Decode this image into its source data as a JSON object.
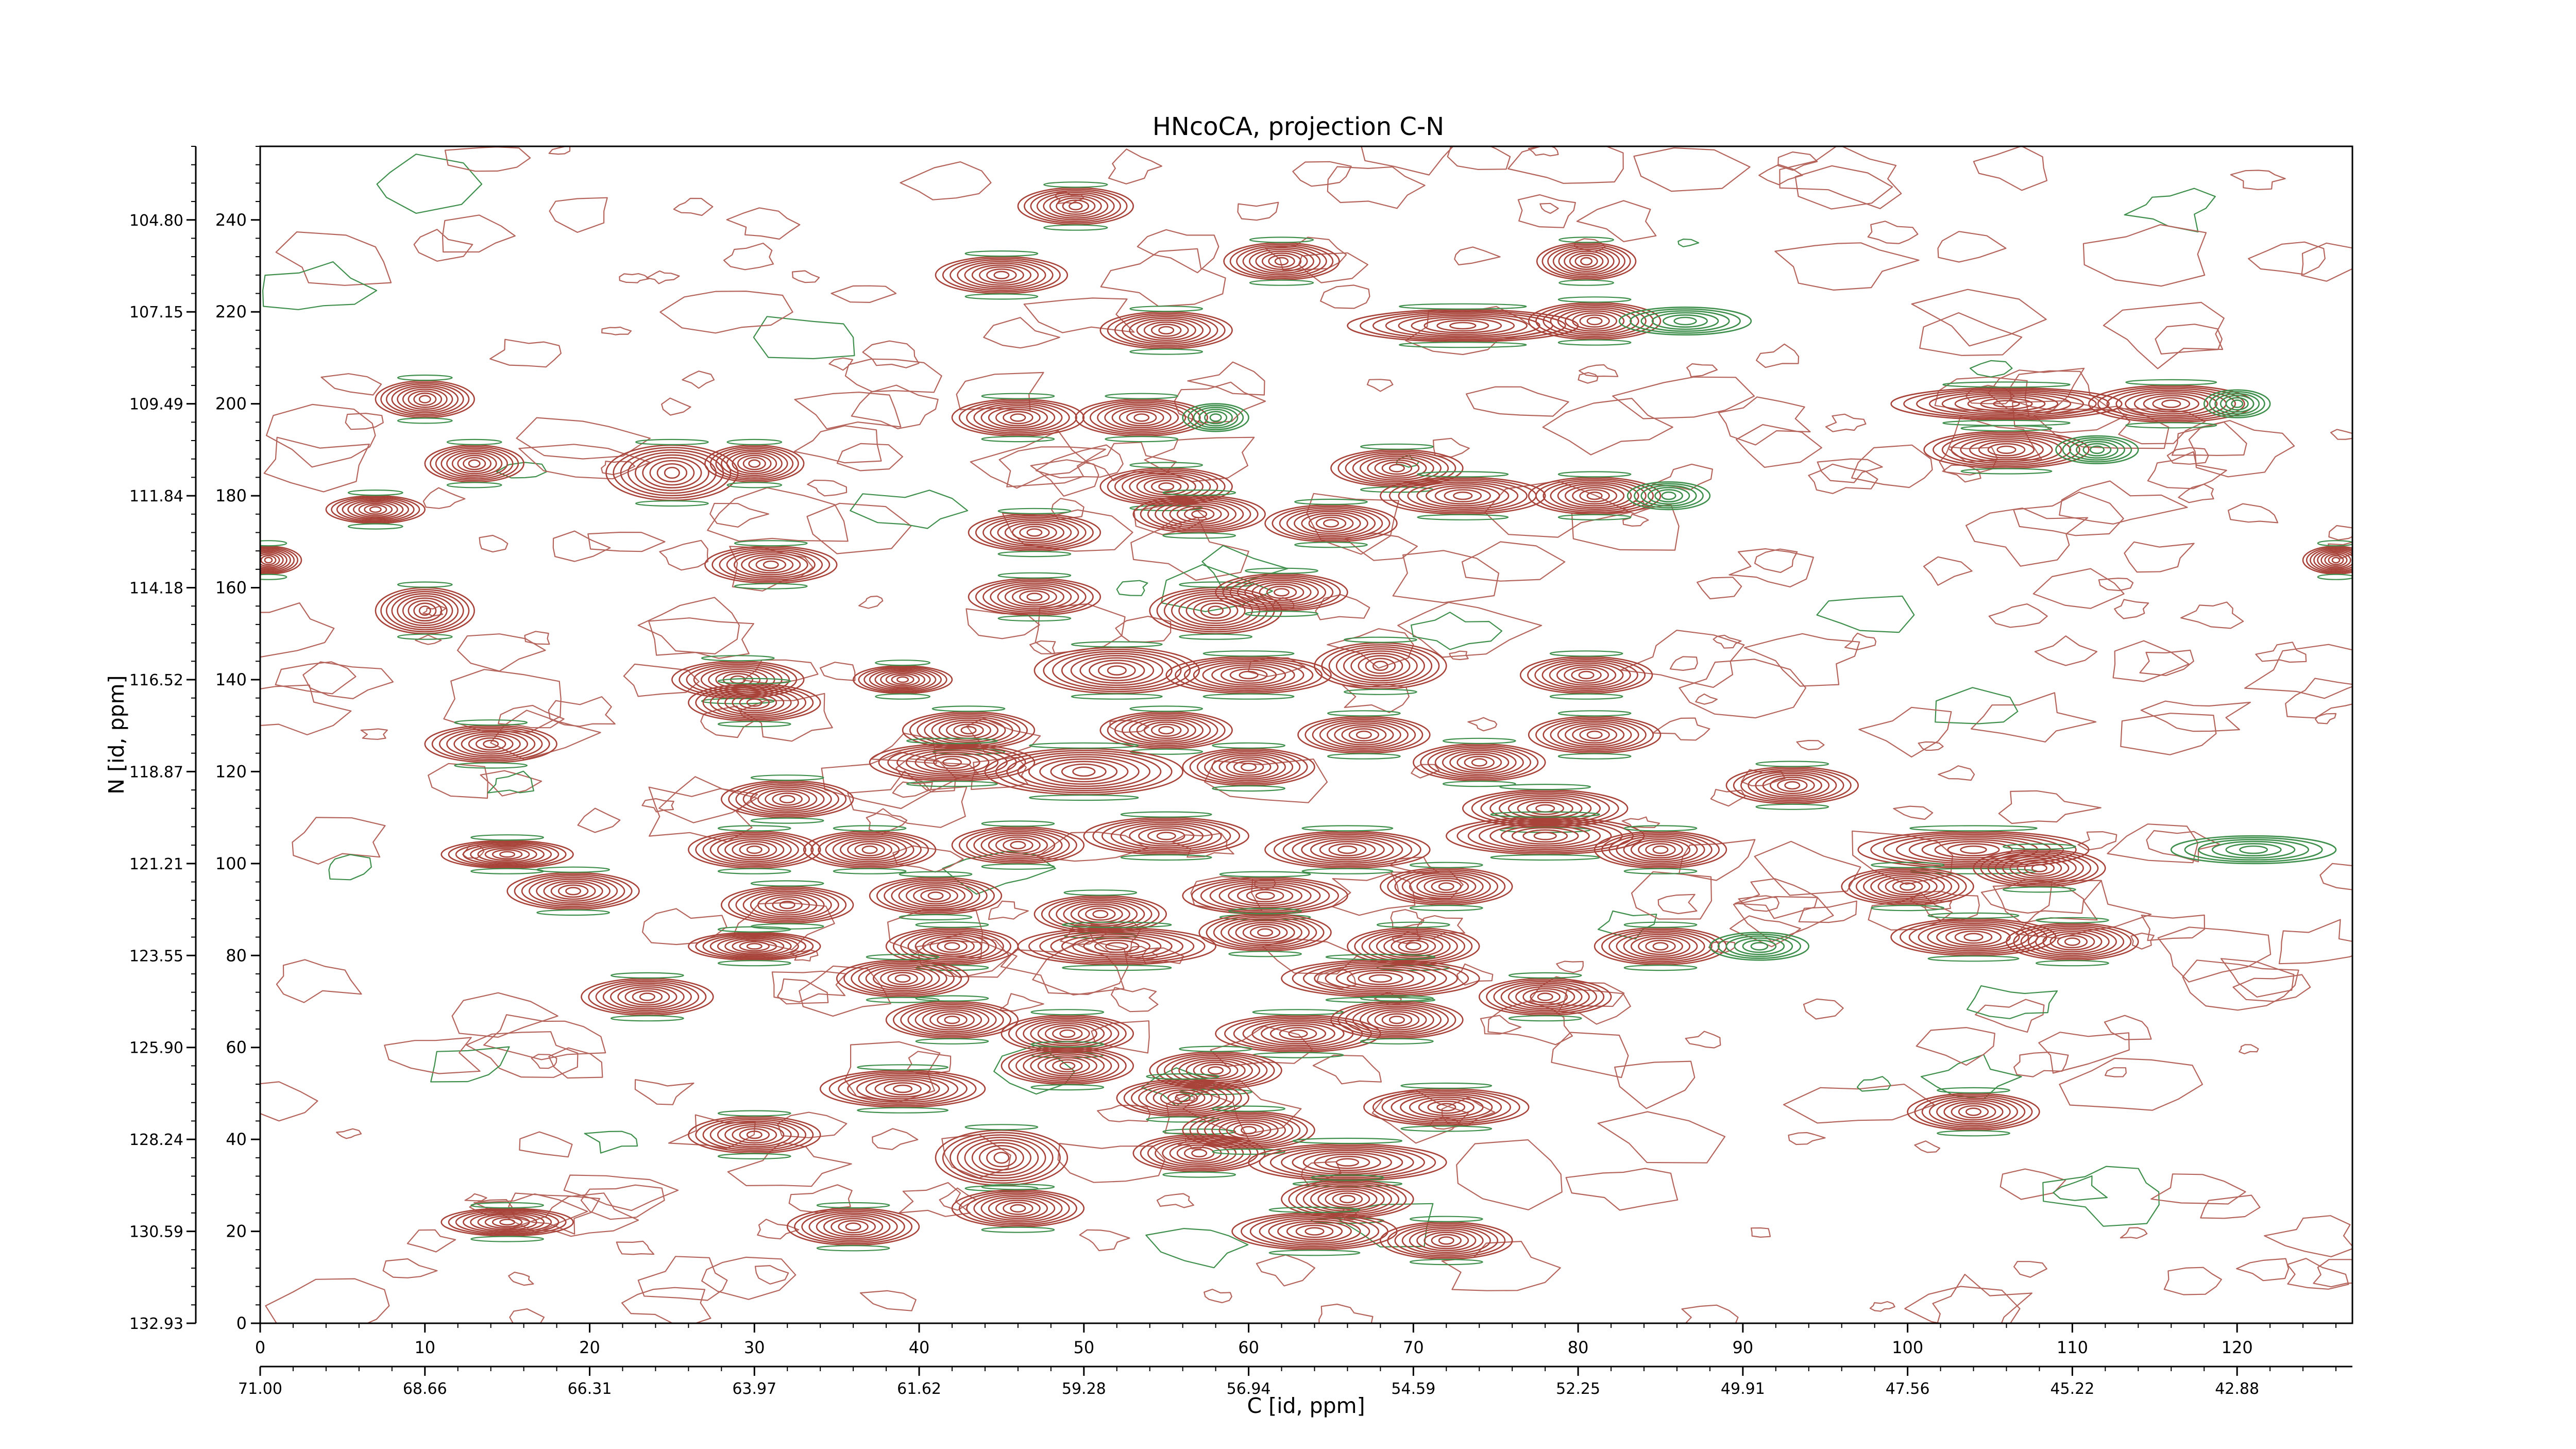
{
  "chart_data": {
    "type": "contour",
    "title": "HNcoCA, projection C-N",
    "xlabel": "C [id, ppm]",
    "ylabel": "N [id, ppm]",
    "xlim": [
      0,
      127
    ],
    "ylim": [
      0,
      256
    ],
    "x_ticks": [
      0,
      10,
      20,
      30,
      40,
      50,
      60,
      70,
      80,
      90,
      100,
      110,
      120
    ],
    "y_ticks": [
      0,
      20,
      40,
      60,
      80,
      100,
      120,
      140,
      160,
      180,
      200,
      220,
      240
    ],
    "x_ppm_labels": [
      "71.00",
      "68.66",
      "66.31",
      "63.97",
      "61.62",
      "59.28",
      "56.94",
      "54.59",
      "52.25",
      "49.91",
      "47.56",
      "45.22",
      "42.88"
    ],
    "y_ppm_labels": [
      "132.93",
      "130.59",
      "128.24",
      "125.90",
      "123.55",
      "121.21",
      "118.87",
      "116.52",
      "114.18",
      "111.84",
      "109.49",
      "107.15",
      "104.80"
    ],
    "colors": {
      "positive": "#a8433a",
      "negative": "#3f8f4c",
      "noise": "#b5645c"
    },
    "peaks": [
      {
        "x": 49.5,
        "y": 243,
        "w": 3.5,
        "h": 4,
        "sign": 1
      },
      {
        "x": 62,
        "y": 231,
        "w": 3.5,
        "h": 4,
        "sign": 1
      },
      {
        "x": 45,
        "y": 228,
        "w": 4,
        "h": 4,
        "sign": 1
      },
      {
        "x": 80.5,
        "y": 231,
        "w": 3,
        "h": 4,
        "sign": 1
      },
      {
        "x": 55,
        "y": 216,
        "w": 4,
        "h": 4,
        "sign": 1
      },
      {
        "x": 73,
        "y": 217,
        "w": 7,
        "h": 3.5,
        "sign": 1
      },
      {
        "x": 81,
        "y": 218,
        "w": 4,
        "h": 4,
        "sign": 1
      },
      {
        "x": 86.5,
        "y": 218,
        "w": 4,
        "h": 3,
        "sign": -1
      },
      {
        "x": 10,
        "y": 201,
        "w": 3,
        "h": 4,
        "sign": 1
      },
      {
        "x": 46,
        "y": 197,
        "w": 4,
        "h": 4,
        "sign": 1
      },
      {
        "x": 53.5,
        "y": 197,
        "w": 4,
        "h": 4,
        "sign": 1
      },
      {
        "x": 58,
        "y": 197,
        "w": 2,
        "h": 3,
        "sign": -1
      },
      {
        "x": 106,
        "y": 200,
        "w": 7,
        "h": 3.5,
        "sign": 1
      },
      {
        "x": 116,
        "y": 200,
        "w": 5,
        "h": 4,
        "sign": 1
      },
      {
        "x": 120,
        "y": 200,
        "w": 2,
        "h": 3,
        "sign": -1
      },
      {
        "x": 13,
        "y": 187,
        "w": 3,
        "h": 4,
        "sign": 1
      },
      {
        "x": 25,
        "y": 185,
        "w": 4,
        "h": 6,
        "sign": 1
      },
      {
        "x": 30,
        "y": 187,
        "w": 3,
        "h": 4,
        "sign": 1
      },
      {
        "x": 7,
        "y": 177,
        "w": 3,
        "h": 3,
        "sign": 1
      },
      {
        "x": 55,
        "y": 182,
        "w": 4,
        "h": 4,
        "sign": 1
      },
      {
        "x": 69,
        "y": 186,
        "w": 4,
        "h": 4,
        "sign": 1
      },
      {
        "x": 73,
        "y": 180,
        "w": 5,
        "h": 4,
        "sign": 1
      },
      {
        "x": 81,
        "y": 180,
        "w": 4,
        "h": 4,
        "sign": 1
      },
      {
        "x": 85.5,
        "y": 180,
        "w": 2.5,
        "h": 3,
        "sign": -1
      },
      {
        "x": 106,
        "y": 190,
        "w": 5,
        "h": 4,
        "sign": 1
      },
      {
        "x": 111.5,
        "y": 190,
        "w": 2.5,
        "h": 3,
        "sign": -1
      },
      {
        "x": 47,
        "y": 172,
        "w": 4,
        "h": 4,
        "sign": 1
      },
      {
        "x": 57,
        "y": 176,
        "w": 4,
        "h": 4,
        "sign": 1
      },
      {
        "x": 65,
        "y": 174,
        "w": 4,
        "h": 4,
        "sign": 1
      },
      {
        "x": 31,
        "y": 165,
        "w": 4,
        "h": 4,
        "sign": 1
      },
      {
        "x": 0.5,
        "y": 166,
        "w": 2,
        "h": 3,
        "sign": 1
      },
      {
        "x": 126,
        "y": 166,
        "w": 2,
        "h": 3,
        "sign": 1
      },
      {
        "x": 10,
        "y": 155,
        "w": 3,
        "h": 5,
        "sign": 1
      },
      {
        "x": 47,
        "y": 158,
        "w": 4,
        "h": 4,
        "sign": 1
      },
      {
        "x": 58,
        "y": 155,
        "w": 4,
        "h": 5,
        "sign": 1
      },
      {
        "x": 62,
        "y": 159,
        "w": 4,
        "h": 4,
        "sign": 1
      },
      {
        "x": 29,
        "y": 140,
        "w": 4,
        "h": 4,
        "sign": 1
      },
      {
        "x": 30,
        "y": 135,
        "w": 4,
        "h": 4,
        "sign": 1
      },
      {
        "x": 39,
        "y": 140,
        "w": 3,
        "h": 3,
        "sign": 1
      },
      {
        "x": 52,
        "y": 142,
        "w": 5,
        "h": 5,
        "sign": 1
      },
      {
        "x": 60,
        "y": 141,
        "w": 5,
        "h": 4,
        "sign": 1
      },
      {
        "x": 68,
        "y": 143,
        "w": 4,
        "h": 5,
        "sign": 1
      },
      {
        "x": 80.5,
        "y": 141,
        "w": 4,
        "h": 4,
        "sign": 1
      },
      {
        "x": 14,
        "y": 126,
        "w": 4,
        "h": 4,
        "sign": 1
      },
      {
        "x": 43,
        "y": 129,
        "w": 4,
        "h": 4,
        "sign": 1
      },
      {
        "x": 55,
        "y": 129,
        "w": 4,
        "h": 4,
        "sign": 1
      },
      {
        "x": 67,
        "y": 128,
        "w": 4,
        "h": 4,
        "sign": 1
      },
      {
        "x": 81,
        "y": 128,
        "w": 4,
        "h": 4,
        "sign": 1
      },
      {
        "x": 42,
        "y": 122,
        "w": 5,
        "h": 4,
        "sign": 1
      },
      {
        "x": 50,
        "y": 120,
        "w": 6,
        "h": 5,
        "sign": 1
      },
      {
        "x": 60,
        "y": 121,
        "w": 4,
        "h": 4,
        "sign": 1
      },
      {
        "x": 74,
        "y": 122,
        "w": 4,
        "h": 4,
        "sign": 1
      },
      {
        "x": 32,
        "y": 114,
        "w": 4,
        "h": 4,
        "sign": 1
      },
      {
        "x": 93,
        "y": 117,
        "w": 4,
        "h": 4,
        "sign": 1
      },
      {
        "x": 78,
        "y": 112,
        "w": 5,
        "h": 4,
        "sign": 1
      },
      {
        "x": 15,
        "y": 102,
        "w": 4,
        "h": 3,
        "sign": 1
      },
      {
        "x": 30,
        "y": 103,
        "w": 4,
        "h": 4,
        "sign": 1
      },
      {
        "x": 37,
        "y": 103,
        "w": 4,
        "h": 4,
        "sign": 1
      },
      {
        "x": 46,
        "y": 104,
        "w": 4,
        "h": 4,
        "sign": 1
      },
      {
        "x": 55,
        "y": 106,
        "w": 5,
        "h": 4,
        "sign": 1
      },
      {
        "x": 66,
        "y": 103,
        "w": 5,
        "h": 4,
        "sign": 1
      },
      {
        "x": 78,
        "y": 106,
        "w": 6,
        "h": 4,
        "sign": 1
      },
      {
        "x": 85,
        "y": 103,
        "w": 4,
        "h": 4,
        "sign": 1
      },
      {
        "x": 104,
        "y": 103,
        "w": 7,
        "h": 4,
        "sign": 1
      },
      {
        "x": 108,
        "y": 99,
        "w": 4,
        "h": 4,
        "sign": 1
      },
      {
        "x": 121,
        "y": 103,
        "w": 5,
        "h": 3,
        "sign": -1
      },
      {
        "x": 19,
        "y": 94,
        "w": 4,
        "h": 4,
        "sign": 1
      },
      {
        "x": 32,
        "y": 91,
        "w": 4,
        "h": 4,
        "sign": 1
      },
      {
        "x": 41,
        "y": 93,
        "w": 4,
        "h": 4,
        "sign": 1
      },
      {
        "x": 51,
        "y": 89,
        "w": 4,
        "h": 4,
        "sign": 1
      },
      {
        "x": 61,
        "y": 93,
        "w": 5,
        "h": 4,
        "sign": 1
      },
      {
        "x": 72,
        "y": 95,
        "w": 4,
        "h": 4,
        "sign": 1
      },
      {
        "x": 100,
        "y": 95,
        "w": 4,
        "h": 4,
        "sign": 1
      },
      {
        "x": 30,
        "y": 82,
        "w": 4,
        "h": 3,
        "sign": 1
      },
      {
        "x": 42,
        "y": 82,
        "w": 4,
        "h": 4,
        "sign": 1
      },
      {
        "x": 52,
        "y": 82,
        "w": 6,
        "h": 4,
        "sign": 1
      },
      {
        "x": 61,
        "y": 85,
        "w": 4,
        "h": 4,
        "sign": 1
      },
      {
        "x": 70,
        "y": 82,
        "w": 4,
        "h": 4,
        "sign": 1
      },
      {
        "x": 85,
        "y": 82,
        "w": 4,
        "h": 4,
        "sign": 1
      },
      {
        "x": 91,
        "y": 82,
        "w": 3,
        "h": 3,
        "sign": -1
      },
      {
        "x": 104,
        "y": 84,
        "w": 5,
        "h": 4,
        "sign": 1
      },
      {
        "x": 110,
        "y": 83,
        "w": 4,
        "h": 4,
        "sign": 1
      },
      {
        "x": 23.5,
        "y": 71,
        "w": 4,
        "h": 4,
        "sign": 1
      },
      {
        "x": 39,
        "y": 75,
        "w": 4,
        "h": 4,
        "sign": 1
      },
      {
        "x": 68,
        "y": 75,
        "w": 6,
        "h": 4,
        "sign": 1
      },
      {
        "x": 78,
        "y": 71,
        "w": 4,
        "h": 4,
        "sign": 1
      },
      {
        "x": 42,
        "y": 66,
        "w": 4,
        "h": 4,
        "sign": 1
      },
      {
        "x": 49,
        "y": 63,
        "w": 4,
        "h": 4,
        "sign": 1
      },
      {
        "x": 63,
        "y": 63,
        "w": 5,
        "h": 4,
        "sign": 1
      },
      {
        "x": 69,
        "y": 66,
        "w": 4,
        "h": 4,
        "sign": 1
      },
      {
        "x": 49,
        "y": 56,
        "w": 4,
        "h": 4,
        "sign": 1
      },
      {
        "x": 58,
        "y": 55,
        "w": 4,
        "h": 4,
        "sign": 1
      },
      {
        "x": 39,
        "y": 51,
        "w": 5,
        "h": 4,
        "sign": 1
      },
      {
        "x": 56,
        "y": 49,
        "w": 4,
        "h": 4,
        "sign": 1
      },
      {
        "x": 72,
        "y": 47,
        "w": 5,
        "h": 4,
        "sign": 1
      },
      {
        "x": 104,
        "y": 46,
        "w": 4,
        "h": 4,
        "sign": 1
      },
      {
        "x": 30,
        "y": 41,
        "w": 4,
        "h": 4,
        "sign": 1
      },
      {
        "x": 45,
        "y": 36,
        "w": 4,
        "h": 6,
        "sign": 1
      },
      {
        "x": 57,
        "y": 37,
        "w": 4,
        "h": 4,
        "sign": 1
      },
      {
        "x": 60,
        "y": 42,
        "w": 4,
        "h": 4,
        "sign": 1
      },
      {
        "x": 66,
        "y": 35,
        "w": 6,
        "h": 4,
        "sign": 1
      },
      {
        "x": 46,
        "y": 25,
        "w": 4,
        "h": 4,
        "sign": 1
      },
      {
        "x": 66,
        "y": 27,
        "w": 4,
        "h": 4,
        "sign": 1
      },
      {
        "x": 15,
        "y": 22,
        "w": 4,
        "h": 3,
        "sign": 1
      },
      {
        "x": 36,
        "y": 21,
        "w": 4,
        "h": 4,
        "sign": 1
      },
      {
        "x": 64,
        "y": 20,
        "w": 5,
        "h": 4,
        "sign": 1
      },
      {
        "x": 72,
        "y": 18,
        "w": 4,
        "h": 4,
        "sign": 1
      }
    ]
  }
}
